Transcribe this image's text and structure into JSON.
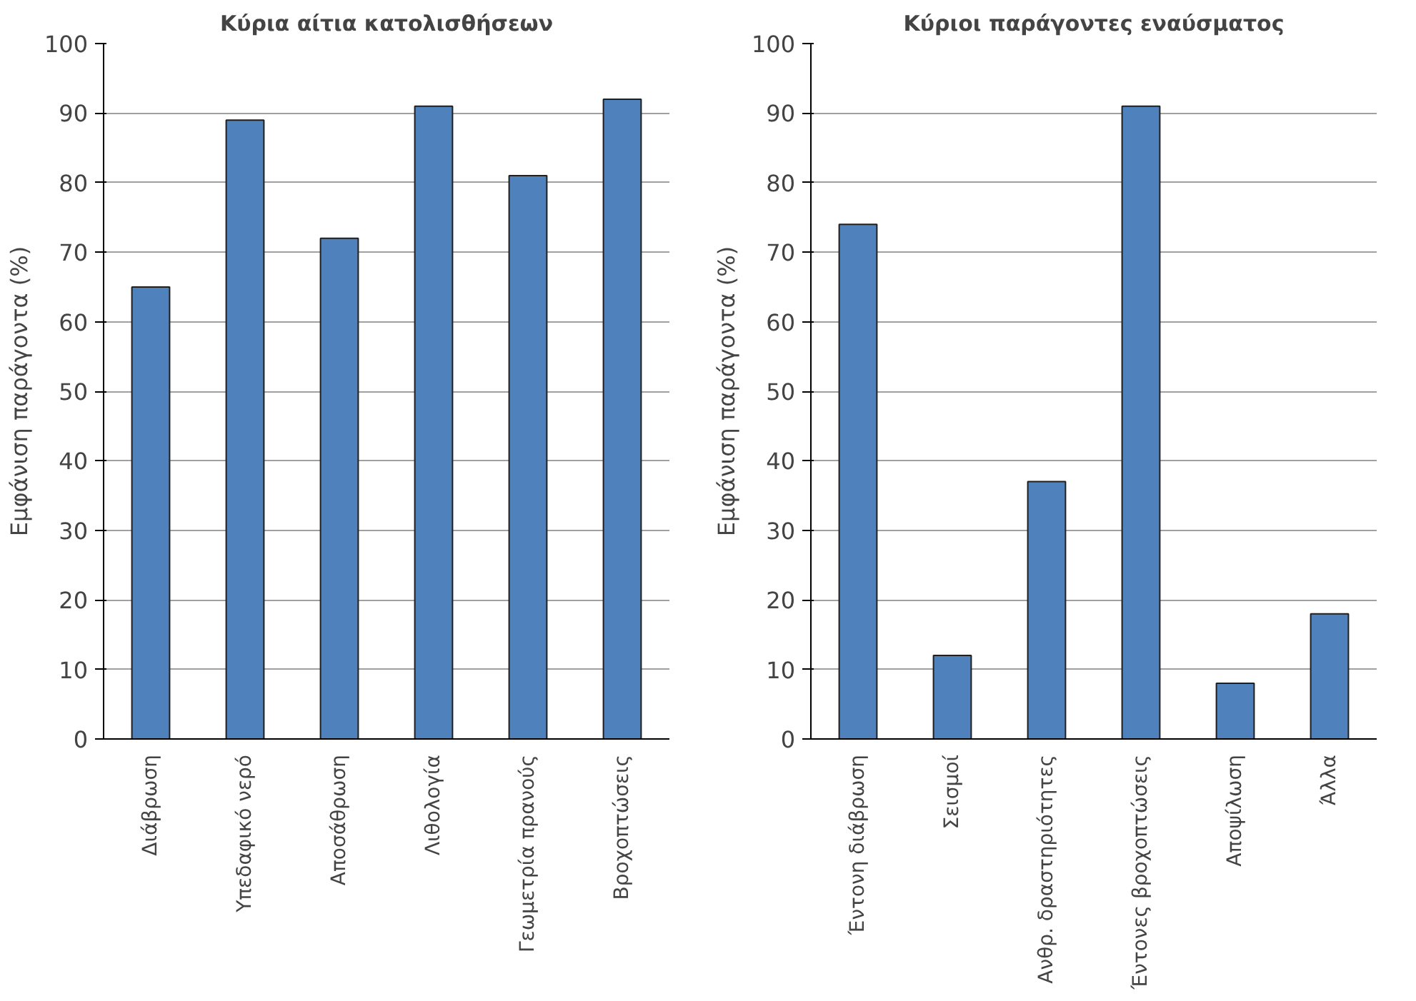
{
  "chart_data": [
    {
      "type": "bar",
      "title": "Κύρια αίτια κατολισθήσεων",
      "ylabel": "Εμφάνιση παράγοντα (%)",
      "categories": [
        "Διάβρωση",
        "Υπεδαφικό νερό",
        "Αποσάθρωση",
        "Λιθολογία",
        "Γεωμετρία πρανούς",
        "Βροχοπτώσεις"
      ],
      "values": [
        65,
        89,
        72,
        91,
        81,
        92
      ],
      "color": "#4f81bd",
      "ylim": [
        0,
        100
      ],
      "yticks": [
        0,
        10,
        20,
        30,
        40,
        50,
        60,
        70,
        80,
        90,
        100
      ],
      "grid": "y"
    },
    {
      "type": "bar",
      "title": "Κύριοι παράγοντες εναύσματος",
      "ylabel": "Εμφάνιση παράγοντα (%)",
      "categories": [
        "Έντονη διάβρωση",
        "Σεισμοί",
        "Ανθρ. δραστηριότητες",
        "Έντονες βροχοπτώσεις",
        "Αποψίλωση",
        "Άλλα"
      ],
      "values": [
        74,
        12,
        37,
        91,
        8,
        18
      ],
      "color": "#4f81bd",
      "ylim": [
        0,
        100
      ],
      "yticks": [
        0,
        10,
        20,
        30,
        40,
        50,
        60,
        70,
        80,
        90,
        100
      ],
      "grid": "y"
    }
  ]
}
